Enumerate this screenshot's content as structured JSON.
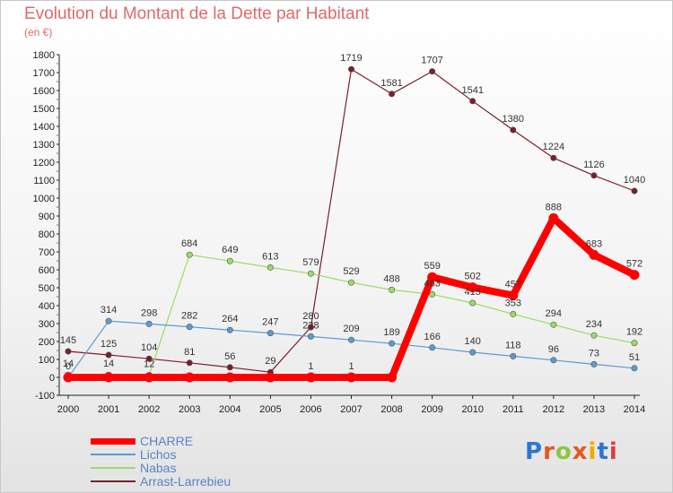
{
  "chart_data": {
    "type": "line",
    "title": "Evolution du Montant de la Dette par Habitant",
    "subtitle": "(en €)",
    "x": [
      "2000",
      "2001",
      "2002",
      "2003",
      "2004",
      "2005",
      "2006",
      "2007",
      "2008",
      "2009",
      "2010",
      "2011",
      "2012",
      "2013",
      "2014"
    ],
    "yticks": [
      -100,
      0,
      100,
      200,
      300,
      400,
      500,
      600,
      700,
      800,
      900,
      1000,
      1100,
      1200,
      1300,
      1400,
      1500,
      1600,
      1700,
      1800
    ],
    "ylim": [
      -100,
      1800
    ],
    "grid": false,
    "legend_position": "bottom-left",
    "series": [
      {
        "name": "CHARRE",
        "color": "#ff0000",
        "values": [
          0,
          0,
          0,
          0,
          0,
          0,
          0,
          0,
          0,
          559,
          502,
          457,
          888,
          683,
          572
        ],
        "labels": [
          "",
          "",
          "",
          "",
          "",
          "",
          "",
          "",
          "",
          "559",
          "502",
          "457",
          "888",
          "683",
          "572"
        ]
      },
      {
        "name": "Lichos",
        "color": "#5b9bd5",
        "values": [
          0,
          314,
          298,
          282,
          264,
          247,
          228,
          209,
          189,
          166,
          140,
          118,
          96,
          73,
          51
        ],
        "labels": [
          "",
          "314",
          "298",
          "282",
          "264",
          "247",
          "228",
          "209",
          "189",
          "166",
          "140",
          "118",
          "96",
          "73",
          "51"
        ]
      },
      {
        "name": "Nabas",
        "color": "#99dd66",
        "values": [
          14,
          14,
          12,
          684,
          649,
          613,
          579,
          529,
          488,
          463,
          415,
          353,
          294,
          234,
          192
        ],
        "labels": [
          "14",
          "14",
          "12",
          "684",
          "649",
          "613",
          "579",
          "529",
          "488",
          "463",
          "415",
          "353",
          "294",
          "234",
          "192"
        ]
      },
      {
        "name": "Arrast-Larrebieu",
        "color": "#7a1f2b",
        "values": [
          145,
          125,
          104,
          81,
          56,
          29,
          280,
          1719,
          1581,
          1707,
          1541,
          1380,
          1224,
          1126,
          1040
        ],
        "labels": [
          "145",
          "125",
          "104",
          "81",
          "56",
          "29",
          "280",
          "1719",
          "1581",
          "1707",
          "1541",
          "1380",
          "1224",
          "1126",
          "1040"
        ]
      }
    ],
    "extra_labels": [
      {
        "x": "2000",
        "text": "0"
      },
      {
        "x": "2006",
        "text": "1"
      },
      {
        "x": "2007",
        "text": "1"
      }
    ]
  },
  "logo": {
    "letters": [
      "P",
      "r",
      "o",
      "x",
      "i",
      "t",
      "i"
    ],
    "colors": [
      "#2e75d1",
      "#e8561e",
      "#8cc63f",
      "#e8561e",
      "#f2a900",
      "#2e75d1",
      "#e03c3c"
    ]
  }
}
